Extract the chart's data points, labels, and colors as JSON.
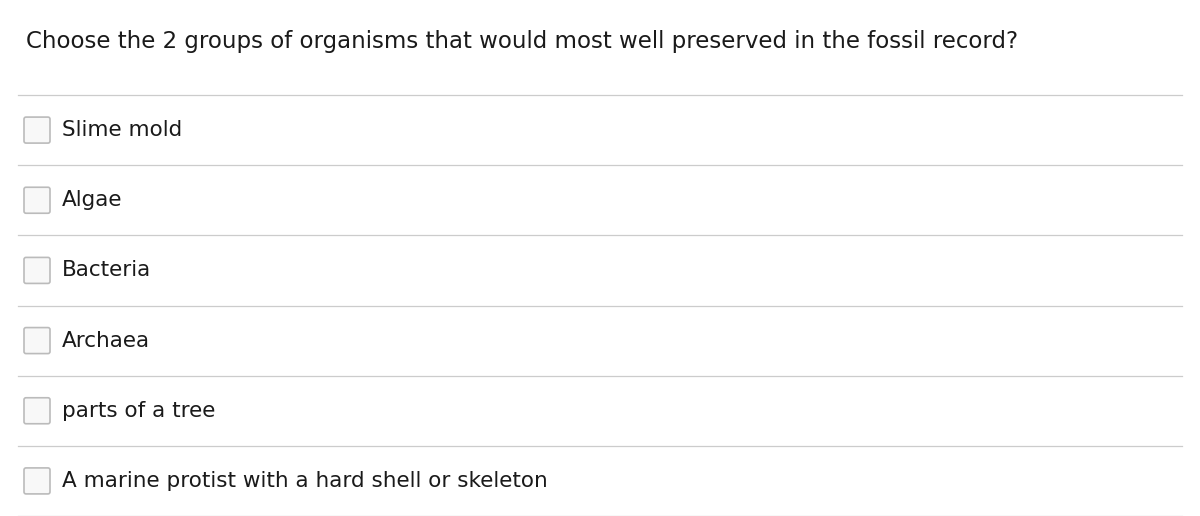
{
  "title": "Choose the 2 groups of organisms that would most well preserved in the fossil record?",
  "options": [
    "Slime mold",
    "Algae",
    "Bacteria",
    "Archaea",
    "parts of a tree",
    "A marine protist with a hard shell or skeleton"
  ],
  "background_color": "#ffffff",
  "title_color": "#1a1a1a",
  "option_color": "#1a1a1a",
  "line_color": "#cccccc",
  "checkbox_edge_color": "#bbbbbb",
  "checkbox_fill": "#f8f8f8",
  "title_fontsize": 16.5,
  "option_fontsize": 15.5
}
